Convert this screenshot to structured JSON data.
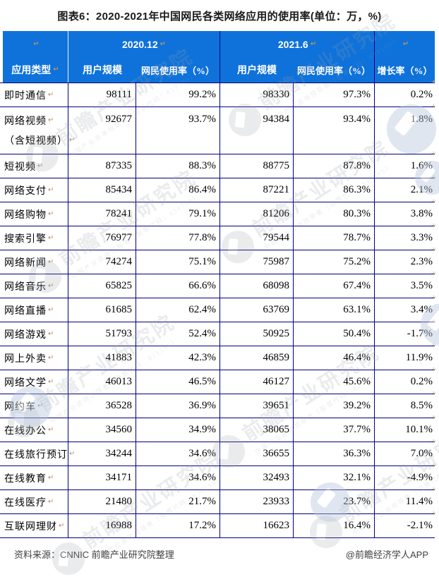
{
  "title": "图表6：2020-2021年中国网民各类网络应用的使用率(单位：万，%)",
  "chart_data": {
    "type": "table",
    "title": "图表6：2020-2021年中国网民各类网络应用的使用率(单位：万，%)",
    "units": "万，%",
    "column_groups": [
      "",
      "2020.12",
      "2021.6",
      ""
    ],
    "columns": [
      "应用类型",
      "用户规模",
      "网民使用率（%）",
      "用户规模",
      "网民使用率（%）",
      "增长率（%）"
    ],
    "rows": [
      {
        "label": [
          "即时通信"
        ],
        "values": [
          "98111",
          "99.2%",
          "98330",
          "97.3%",
          "0.2%"
        ]
      },
      {
        "label": [
          "网络视频",
          "（含短视频）"
        ],
        "values": [
          "92677",
          "93.7%",
          "94384",
          "93.4%",
          "1.8%"
        ]
      },
      {
        "label": [
          "短视频"
        ],
        "values": [
          "87335",
          "88.3%",
          "88775",
          "87.8%",
          "1.6%"
        ]
      },
      {
        "label": [
          "网络支付"
        ],
        "values": [
          "85434",
          "86.4%",
          "87221",
          "86.3%",
          "2.1%"
        ]
      },
      {
        "label": [
          "网络购物"
        ],
        "values": [
          "78241",
          "79.1%",
          "81206",
          "80.3%",
          "3.8%"
        ]
      },
      {
        "label": [
          "搜索引擎"
        ],
        "values": [
          "76977",
          "77.8%",
          "79544",
          "78.7%",
          "3.3%"
        ]
      },
      {
        "label": [
          "网络新闻"
        ],
        "values": [
          "74274",
          "75.1%",
          "75987",
          "75.2%",
          "2.3%"
        ]
      },
      {
        "label": [
          "网络音乐"
        ],
        "values": [
          "65825",
          "66.6%",
          "68098",
          "67.4%",
          "3.5%"
        ]
      },
      {
        "label": [
          "网络直播"
        ],
        "values": [
          "61685",
          "62.4%",
          "63769",
          "63.1%",
          "3.4%"
        ]
      },
      {
        "label": [
          "网络游戏"
        ],
        "values": [
          "51793",
          "52.4%",
          "50925",
          "50.4%",
          "-1.7%"
        ]
      },
      {
        "label": [
          "网上外卖"
        ],
        "values": [
          "41883",
          "42.3%",
          "46859",
          "46.4%",
          "11.9%"
        ]
      },
      {
        "label": [
          "网络文学"
        ],
        "values": [
          "46013",
          "46.5%",
          "46127",
          "45.6%",
          "0.2%"
        ]
      },
      {
        "label": [
          "网约车"
        ],
        "values": [
          "36528",
          "36.9%",
          "39651",
          "39.2%",
          "8.5%"
        ]
      },
      {
        "label": [
          "在线办公"
        ],
        "values": [
          "34560",
          "34.9%",
          "38065",
          "37.7%",
          "10.1%"
        ]
      },
      {
        "label": [
          "在线旅行预订"
        ],
        "values": [
          "34244",
          "34.6%",
          "36655",
          "36.3%",
          "7.0%"
        ]
      },
      {
        "label": [
          "在线教育"
        ],
        "values": [
          "34171",
          "34.6%",
          "32493",
          "32.1%",
          "-4.9%"
        ]
      },
      {
        "label": [
          "在线医疗"
        ],
        "values": [
          "21480",
          "21.7%",
          "23933",
          "23.7%",
          "11.4%"
        ]
      },
      {
        "label": [
          "互联网理财"
        ],
        "values": [
          "16988",
          "17.2%",
          "16623",
          "16.4%",
          "-2.1%"
        ]
      }
    ]
  },
  "footer": {
    "source": "资料来源：CNNIC 前瞻产业研究院整理",
    "credit": "@前瞻经济学人APP"
  },
  "watermark": {
    "brand": "前瞻产业研究院",
    "tagline": "中国产业咨询领导者（股票代码：839599）"
  },
  "marks": {
    "paragraph": "↵",
    "cell_end": "+"
  },
  "colors": {
    "header-bg": "#0e72da",
    "table-border": "#000080",
    "title-color": "#1a1a1a",
    "pilcrow": "#b0906a",
    "watermark-gray": "#9aa1a8",
    "watermark-blue": "#b6c6dc"
  }
}
